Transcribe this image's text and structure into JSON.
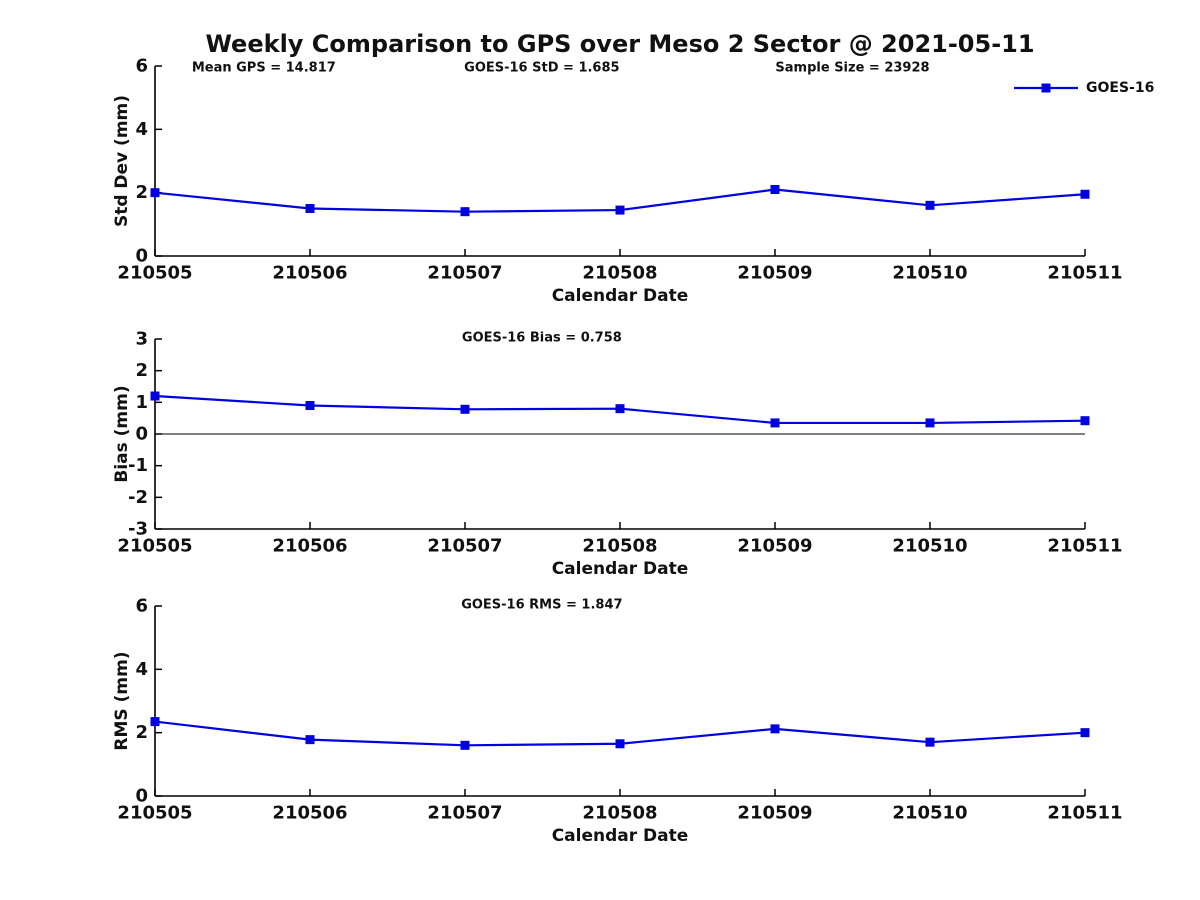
{
  "title": "Weekly Comparison to GPS over Meso 2 Sector @ 2021-05-11",
  "colors": {
    "series": "#0202e0",
    "axis": "#000000",
    "text": "#111111",
    "zero_line": "#000000"
  },
  "legend": {
    "label": "GOES-16"
  },
  "chart_data": [
    {
      "id": "std-dev",
      "type": "line",
      "marker": "square",
      "annotations": [
        "Mean GPS = 14.817",
        "GOES-16 StD = 1.685",
        "Sample Size = 23928"
      ],
      "categories": [
        "210505",
        "210506",
        "210507",
        "210508",
        "210509",
        "210510",
        "210511"
      ],
      "series": [
        {
          "name": "GOES-16",
          "values": [
            2.0,
            1.5,
            1.4,
            1.45,
            2.1,
            1.6,
            1.95
          ]
        }
      ],
      "xlabel": "Calendar Date",
      "ylabel": "Std Dev (mm)",
      "ylim": [
        0,
        6
      ],
      "yticks": [
        0,
        2,
        4,
        6
      ],
      "zero_line": false,
      "legend_position": "top-right-inside"
    },
    {
      "id": "bias",
      "type": "line",
      "marker": "square",
      "annotations": [
        "GOES-16 Bias  = 0.758"
      ],
      "categories": [
        "210505",
        "210506",
        "210507",
        "210508",
        "210509",
        "210510",
        "210511"
      ],
      "series": [
        {
          "name": "GOES-16",
          "values": [
            1.2,
            0.9,
            0.78,
            0.8,
            0.35,
            0.35,
            0.42
          ]
        }
      ],
      "xlabel": "Calendar Date",
      "ylabel": "Bias (mm)",
      "ylim": [
        -3,
        3
      ],
      "yticks": [
        3,
        2,
        1,
        0,
        -1,
        -2,
        -3
      ],
      "zero_line": true,
      "legend_position": "none"
    },
    {
      "id": "rms",
      "type": "line",
      "marker": "square",
      "annotations": [
        "GOES-16 RMS = 1.847"
      ],
      "categories": [
        "210505",
        "210506",
        "210507",
        "210508",
        "210509",
        "210510",
        "210511"
      ],
      "series": [
        {
          "name": "GOES-16",
          "values": [
            2.35,
            1.78,
            1.6,
            1.65,
            2.12,
            1.7,
            2.0
          ]
        }
      ],
      "xlabel": "Calendar Date",
      "ylabel": "RMS (mm)",
      "ylim": [
        0,
        6
      ],
      "yticks": [
        0,
        2,
        4,
        6
      ],
      "zero_line": false,
      "legend_position": "none"
    }
  ]
}
